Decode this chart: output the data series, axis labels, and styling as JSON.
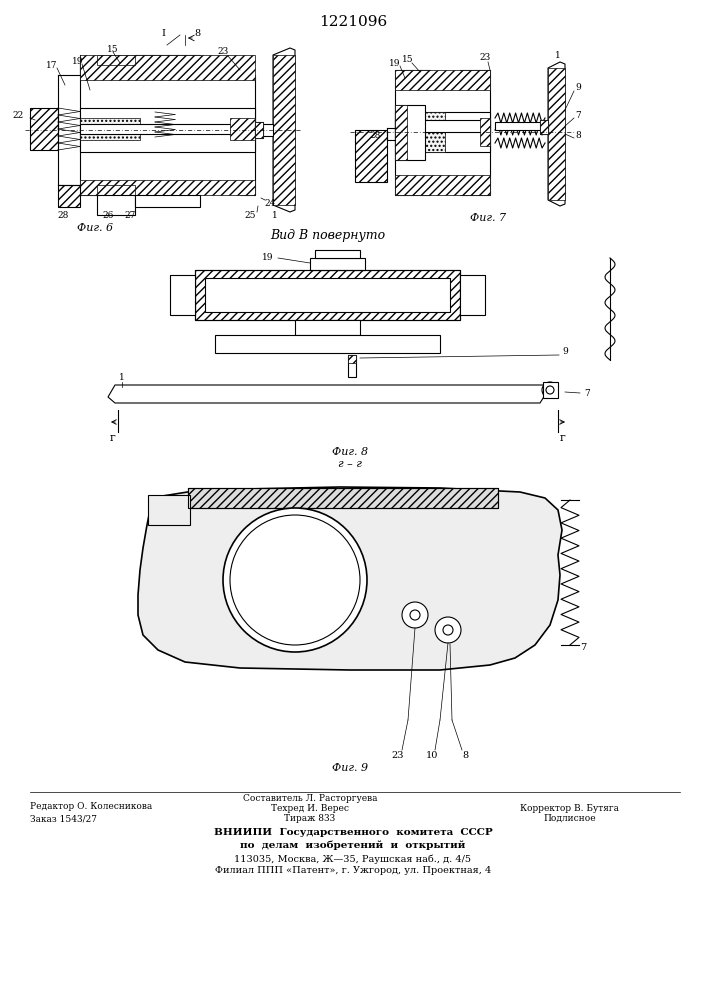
{
  "title": "1221096",
  "bg": "#ffffff",
  "fig_width": 7.07,
  "fig_height": 10.0,
  "footer": {
    "col1_line1": "Редактор О. Колесникова",
    "col1_line2": "Заказ 1543/27",
    "col2_line0": "Составитель Л. Расторгуева",
    "col2_line1": "Техред И. Верес",
    "col2_line2": "Тираж 833",
    "col3_line1": "Корректор В. Бутяга",
    "col3_line2": "Подлисное",
    "bold1": "ВНИИПИ  Государственного  комитета  СССР",
    "bold2": "по  делам  изобретений  и  открытий",
    "line3": "113035, Москва, Ж—35, Раушская наб., д. 4/5",
    "line4": "Филиал ППП «Патент», г. Ужгород, ул. Проектная, 4"
  }
}
